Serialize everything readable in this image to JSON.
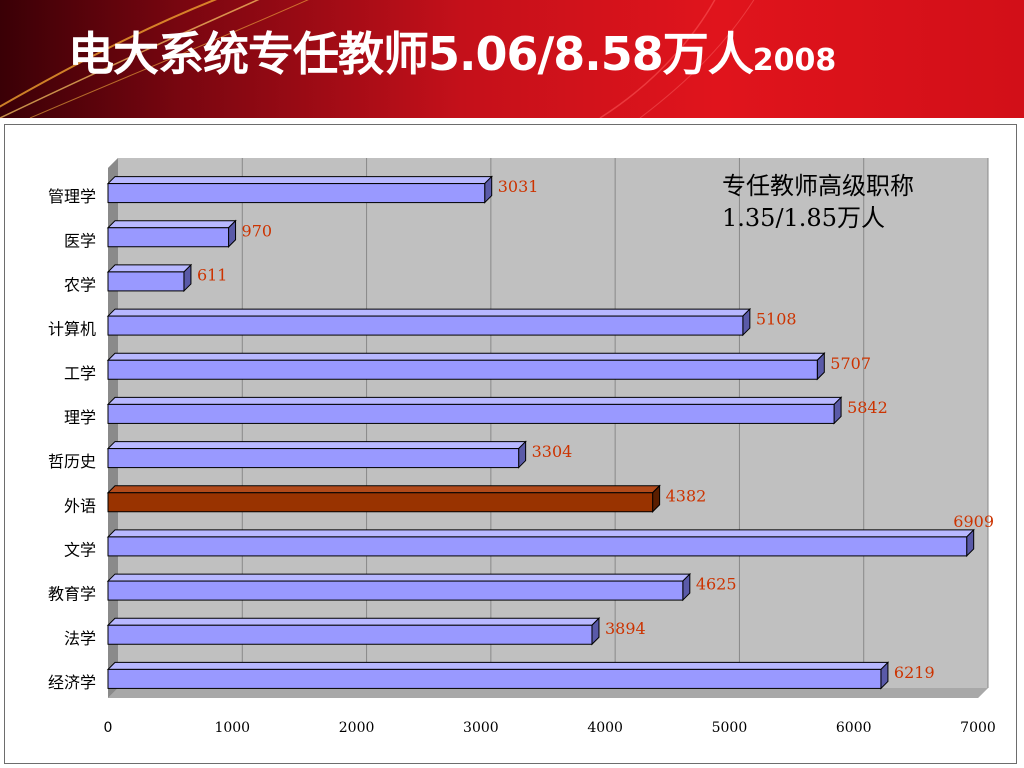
{
  "title": {
    "main": "电大系统专任教师5.06/8.58万人",
    "year": "2008"
  },
  "colors": {
    "header_red": "#e0141c",
    "bar_fill": "#9999ff",
    "bar_highlight": "#993300",
    "value_label": "#cc3300",
    "plot_background": "#c0c0c0"
  },
  "annotation": {
    "line1": "专任教师高级职称",
    "line2": "1.35/1.85万人"
  },
  "chart_data": {
    "type": "bar",
    "orientation": "horizontal",
    "style": "3d",
    "categories": [
      "管理学",
      "医学",
      "农学",
      "计算机",
      "工学",
      "理学",
      "哲历史",
      "外语",
      "文学",
      "教育学",
      "法学",
      "经济学"
    ],
    "values": [
      3031,
      970,
      611,
      5108,
      5707,
      5842,
      3304,
      4382,
      6909,
      4625,
      3894,
      6219
    ],
    "data_labels": [
      "3031",
      "970",
      "611",
      "5108",
      "5707",
      "5842",
      "3304",
      "4382",
      "6909",
      "4625",
      "3894",
      "6219"
    ],
    "highlight_category": "外语",
    "xlim": [
      0,
      7000
    ],
    "xticks": [
      0,
      1000,
      2000,
      3000,
      4000,
      5000,
      6000,
      7000
    ],
    "xtick_labels": [
      "0",
      "1000",
      "2000",
      "3000",
      "4000",
      "5000",
      "6000",
      "7000"
    ],
    "grid": true,
    "legend": "none"
  }
}
